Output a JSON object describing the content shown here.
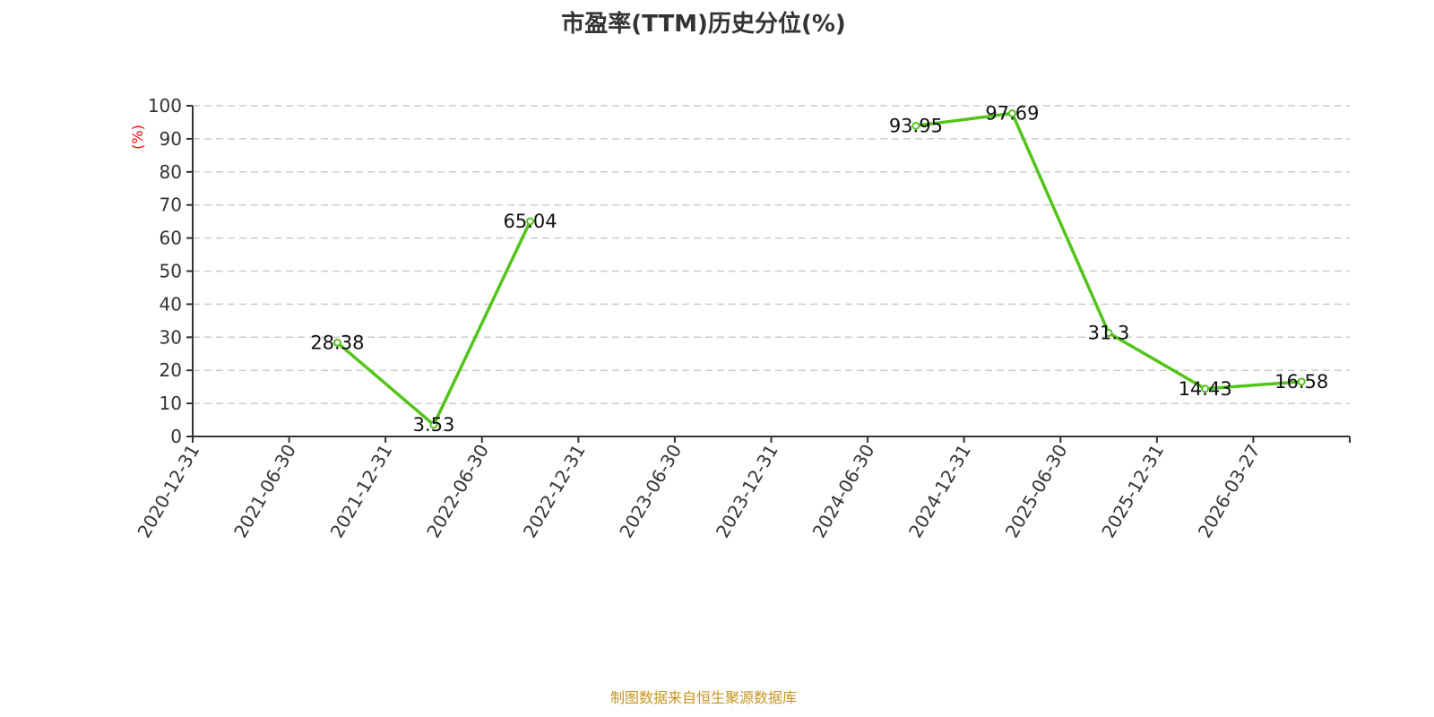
{
  "chart_data": {
    "type": "line",
    "title": "市盈率(TTM)历史分位(%)",
    "ylabel": "(%)",
    "ylim": [
      0,
      100
    ],
    "yticks": [
      0,
      10,
      20,
      30,
      40,
      50,
      60,
      70,
      80,
      90,
      100
    ],
    "categories": [
      "2020-12-31",
      "2021-06-30",
      "2021-12-31",
      "2022-06-30",
      "2022-12-31",
      "2023-06-30",
      "2023-12-31",
      "2024-06-30",
      "2024-12-31",
      "2025-06-30",
      "2025-12-31",
      "2026-03-27"
    ],
    "values": [
      null,
      28.38,
      3.53,
      65.04,
      null,
      null,
      null,
      93.95,
      97.69,
      31.3,
      14.43,
      16.58
    ],
    "grid": true,
    "line_color": "#52c41a",
    "ylabel_color": "#ff0000"
  },
  "source": "制图数据来自恒生聚源数据库"
}
